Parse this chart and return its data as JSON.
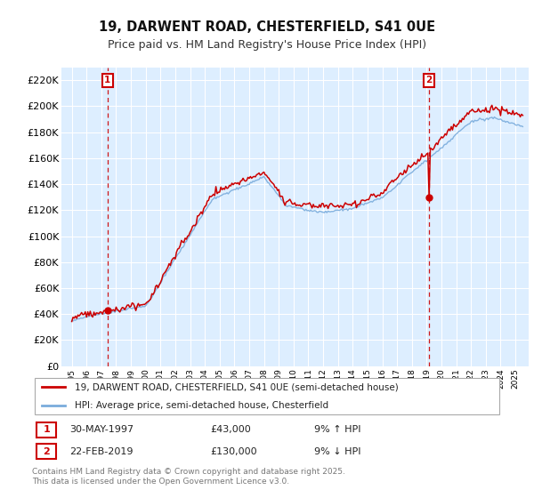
{
  "title": "19, DARWENT ROAD, CHESTERFIELD, S41 0UE",
  "subtitle": "Price paid vs. HM Land Registry's House Price Index (HPI)",
  "legend_line1": "19, DARWENT ROAD, CHESTERFIELD, S41 0UE (semi-detached house)",
  "legend_line2": "HPI: Average price, semi-detached house, Chesterfield",
  "footer": "Contains HM Land Registry data © Crown copyright and database right 2025.\nThis data is licensed under the Open Government Licence v3.0.",
  "annotation1_date": "30-MAY-1997",
  "annotation1_price": "£43,000",
  "annotation1_hpi": "9% ↑ HPI",
  "annotation2_date": "22-FEB-2019",
  "annotation2_price": "£130,000",
  "annotation2_hpi": "9% ↓ HPI",
  "price_line_color": "#cc0000",
  "hpi_line_color": "#7aacdc",
  "hpi_fill_color": "#ddeeff",
  "background_color": "#ddeeff",
  "grid_color": "#ffffff",
  "annotation_box_color": "#cc0000",
  "vline_color": "#cc0000",
  "ylim_max": 230000,
  "ytick_step": 20000
}
